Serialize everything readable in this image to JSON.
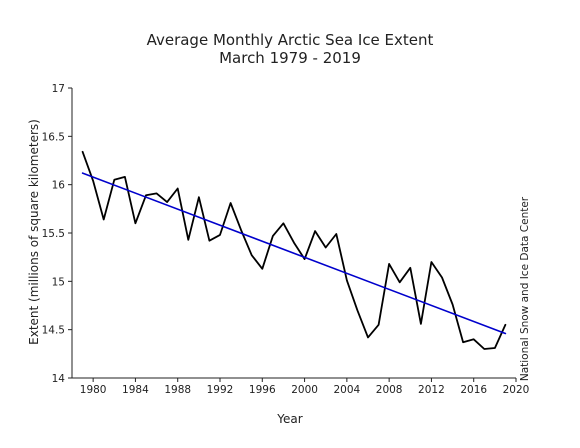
{
  "chart_data": {
    "type": "line",
    "title": "Average Monthly Arctic Sea Ice Extent",
    "subtitle": "March 1979 - 2019",
    "xlabel": "Year",
    "ylabel": "Extent (millions of square kilometers)",
    "credit": "National Snow and Ice Data Center",
    "xlim": [
      1978,
      2020
    ],
    "ylim": [
      14,
      17
    ],
    "x_ticks": [
      1980,
      1984,
      1988,
      1992,
      1996,
      2000,
      2004,
      2008,
      2012,
      2016,
      2020
    ],
    "y_ticks": [
      14,
      14.5,
      15,
      15.5,
      16,
      16.5,
      17
    ],
    "x_tick_labels": [
      "1980",
      "1984",
      "1988",
      "1992",
      "1996",
      "2000",
      "2004",
      "2008",
      "2012",
      "2016",
      "2020"
    ],
    "y_tick_labels": [
      "14",
      "14.5",
      "15",
      "15.5",
      "16",
      "16.5",
      "17"
    ],
    "grid": false,
    "series": [
      {
        "color": "#000000",
        "x": [
          1979,
          1980,
          1981,
          1982,
          1983,
          1984,
          1985,
          1986,
          1987,
          1988,
          1989,
          1990,
          1991,
          1992,
          1993,
          1994,
          1995,
          1996,
          1997,
          1998,
          1999,
          2000,
          2001,
          2002,
          2003,
          2004,
          2005,
          2006,
          2007,
          2008,
          2009,
          2010,
          2011,
          2012,
          2013,
          2014,
          2015,
          2016,
          2017,
          2018,
          2019
        ],
        "y": [
          16.34,
          16.04,
          15.64,
          16.05,
          16.08,
          15.6,
          15.89,
          15.91,
          15.82,
          15.96,
          15.43,
          15.87,
          15.42,
          15.48,
          15.81,
          15.53,
          15.27,
          15.13,
          15.47,
          15.6,
          15.4,
          15.23,
          15.52,
          15.35,
          15.49,
          15.01,
          14.7,
          14.42,
          14.55,
          15.18,
          14.99,
          15.14,
          14.56,
          15.2,
          15.04,
          14.76,
          14.37,
          14.4,
          14.3,
          14.31,
          14.55
        ]
      },
      {
        "color": "#0000cc",
        "x": [
          1979,
          2019
        ],
        "y": [
          16.12,
          14.46
        ]
      }
    ]
  }
}
